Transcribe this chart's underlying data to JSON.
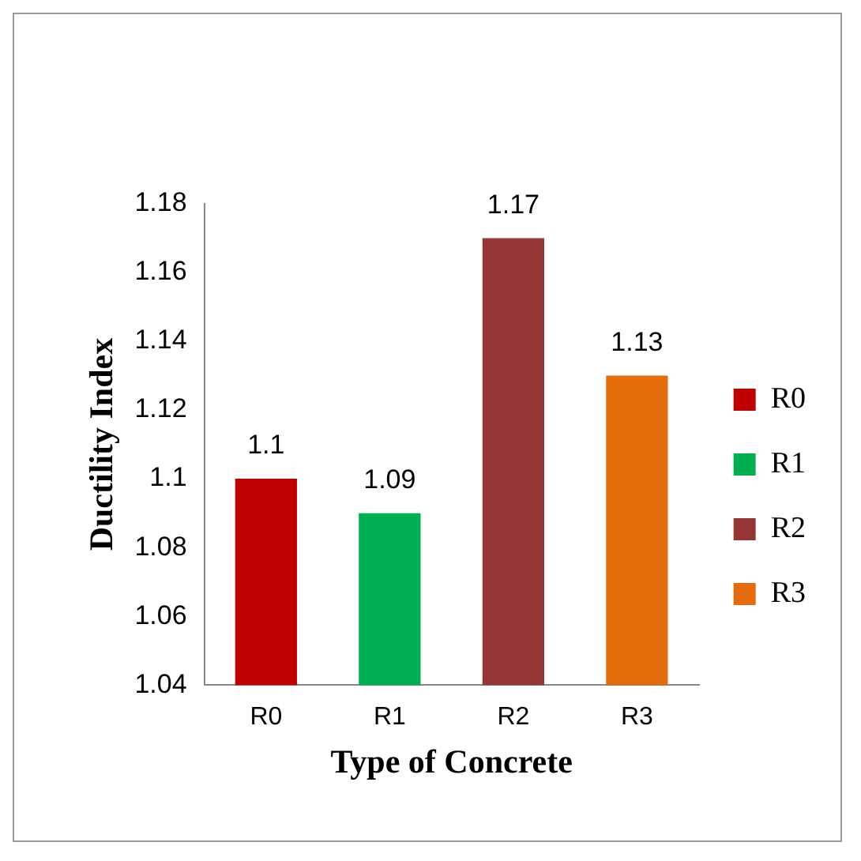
{
  "chart_data": {
    "type": "bar",
    "xlabel": "Type of Concrete",
    "ylabel": "Ductility Index",
    "categories": [
      "R0",
      "R1",
      "R2",
      "R3"
    ],
    "series": [
      {
        "name": "R0",
        "color": "#c00000",
        "values": [
          1.1,
          null,
          null,
          null
        ]
      },
      {
        "name": "R1",
        "color": "#00b050",
        "values": [
          null,
          1.09,
          null,
          null
        ]
      },
      {
        "name": "R2",
        "color": "#953735",
        "values": [
          null,
          null,
          1.17,
          null
        ]
      },
      {
        "name": "R3",
        "color": "#e46c0a",
        "values": [
          null,
          null,
          null,
          1.13
        ]
      }
    ],
    "ylim": [
      1.04,
      1.18
    ],
    "yticks": [
      1.04,
      1.06,
      1.08,
      1.1,
      1.12,
      1.14,
      1.16,
      1.18
    ],
    "grid": false,
    "legend": "right",
    "data_labels": true
  }
}
